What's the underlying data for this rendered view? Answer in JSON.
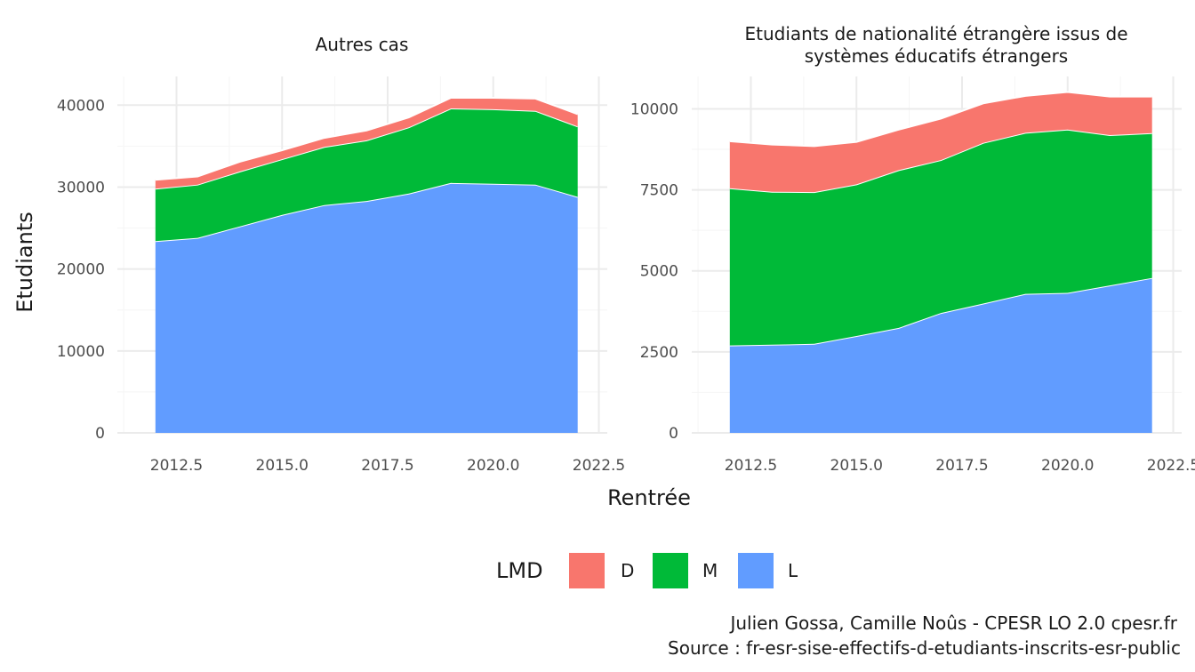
{
  "chart_data": [
    {
      "type": "area",
      "title": "Autres cas",
      "title_lines": [
        "Autres cas"
      ],
      "x": [
        2012,
        2013,
        2014,
        2015,
        2016,
        2017,
        2018,
        2019,
        2020,
        2021,
        2022
      ],
      "xlim": [
        2011.1,
        2022.7
      ],
      "xticks": [
        "2012.5",
        "2015.0",
        "2017.5",
        "2020.0",
        "2022.5"
      ],
      "ylim": [
        0,
        43500
      ],
      "yticks": [
        "0",
        "10000",
        "20000",
        "30000",
        "40000"
      ],
      "stacked": true,
      "series": [
        {
          "name": "L",
          "color": "#619cff",
          "values": [
            23400,
            23800,
            25200,
            26600,
            27800,
            28300,
            29200,
            30500,
            30400,
            30300,
            28800
          ]
        },
        {
          "name": "M",
          "color": "#00ba38",
          "values": [
            6400,
            6500,
            6700,
            6800,
            7100,
            7400,
            8100,
            9100,
            9100,
            9000,
            8600
          ]
        },
        {
          "name": "D",
          "color": "#f8766d",
          "values": [
            1100,
            1000,
            1200,
            1100,
            1100,
            1200,
            1200,
            1300,
            1400,
            1500,
            1500
          ]
        }
      ]
    },
    {
      "type": "area",
      "title": "Etudiants de nationalité étrangère issus de systèmes éducatifs étrangers",
      "title_lines": [
        "Etudiants de nationalité étrangère issus de",
        "systèmes éducatifs étrangers"
      ],
      "x": [
        2012,
        2013,
        2014,
        2015,
        2016,
        2017,
        2018,
        2019,
        2020,
        2021,
        2022
      ],
      "xlim": [
        2011.1,
        2022.7
      ],
      "xticks": [
        "2012.5",
        "2015.0",
        "2017.5",
        "2020.0",
        "2022.5"
      ],
      "ylim": [
        0,
        11000
      ],
      "yticks": [
        "0",
        "2500",
        "5000",
        "7500",
        "10000"
      ],
      "stacked": true,
      "series": [
        {
          "name": "L",
          "color": "#619cff",
          "values": [
            2700,
            2720,
            2750,
            2990,
            3240,
            3700,
            3990,
            4290,
            4320,
            4550,
            4780
          ]
        },
        {
          "name": "M",
          "color": "#00ba38",
          "values": [
            4850,
            4720,
            4680,
            4680,
            4870,
            4720,
            4960,
            4970,
            5040,
            4640,
            4470
          ]
        },
        {
          "name": "D",
          "color": "#f8766d",
          "values": [
            1450,
            1460,
            1420,
            1310,
            1250,
            1280,
            1220,
            1140,
            1160,
            1190,
            1130
          ]
        }
      ]
    }
  ],
  "axes": {
    "xlabel": "Rentrée",
    "ylabel": "Etudiants"
  },
  "legend": {
    "title": "LMD",
    "position": "bottom",
    "items": [
      {
        "label": "D",
        "color": "#f8766d"
      },
      {
        "label": "M",
        "color": "#00ba38"
      },
      {
        "label": "L",
        "color": "#619cff"
      }
    ]
  },
  "caption": {
    "line1": "Julien Gossa, Camille Noûs - CPESR LO 2.0 cpesr.fr",
    "line2": "Source : fr-esr-sise-effectifs-d-etudiants-inscrits-esr-public"
  },
  "colors": {
    "grid_major": "#ebebeb",
    "grid_minor": "#f5f5f5",
    "outline": "#ffffff"
  }
}
